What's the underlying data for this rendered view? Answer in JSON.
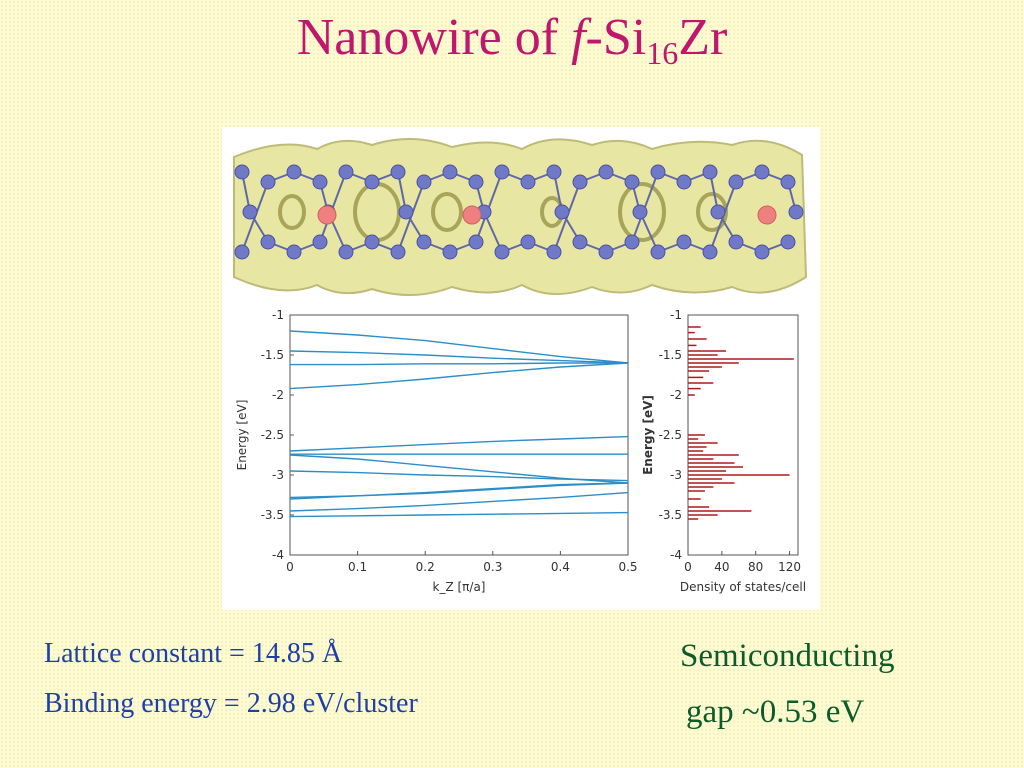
{
  "title": {
    "prefix": "Nanowire of ",
    "italic": "f",
    "mid": "-Si",
    "subscript": "16",
    "suffix": "Zr"
  },
  "info": {
    "lattice": "Lattice constant = 14.85 Å",
    "binding": "Binding energy = 2.98 eV/cluster",
    "semiconducting_line1": "Semiconducting",
    "semiconducting_line2": "gap ~0.53 eV"
  },
  "colors": {
    "title": "#c0166e",
    "info_text": "#1f3fa8",
    "semiconducting_text": "#0d5a2a",
    "band_lines": "#2a8fc8",
    "dos_lines": "#b01818",
    "structure_isosurface": "#e6e49a",
    "si_atoms": "#7078c8",
    "zr_atoms": "#ee8080"
  },
  "chart_data": [
    {
      "type": "line",
      "xlabel": "k_Z [π/a]",
      "ylabel": "Energy [eV]",
      "xlim": [
        0,
        0.5
      ],
      "ylim": [
        -4,
        -1
      ],
      "x_ticks": [
        "0",
        "0.1",
        "0.2",
        "0.3",
        "0.4",
        "0.5"
      ],
      "y_ticks": [
        "-1",
        "-1.5",
        "-2",
        "-2.5",
        "-3",
        "-3.5",
        "-4"
      ],
      "grid": false,
      "series": [
        {
          "x": [
            0,
            0.1,
            0.2,
            0.3,
            0.4,
            0.5
          ],
          "values": [
            -1.2,
            -1.25,
            -1.32,
            -1.42,
            -1.52,
            -1.6
          ]
        },
        {
          "x": [
            0,
            0.1,
            0.2,
            0.3,
            0.4,
            0.5
          ],
          "values": [
            -1.45,
            -1.47,
            -1.5,
            -1.54,
            -1.57,
            -1.6
          ]
        },
        {
          "x": [
            0,
            0.1,
            0.2,
            0.3,
            0.4,
            0.5
          ],
          "values": [
            -1.62,
            -1.62,
            -1.61,
            -1.61,
            -1.6,
            -1.6
          ]
        },
        {
          "x": [
            0,
            0.1,
            0.2,
            0.3,
            0.4,
            0.5
          ],
          "values": [
            -1.92,
            -1.87,
            -1.8,
            -1.72,
            -1.65,
            -1.6
          ]
        },
        {
          "x": [
            0,
            0.1,
            0.2,
            0.3,
            0.4,
            0.5
          ],
          "values": [
            -2.7,
            -2.66,
            -2.62,
            -2.58,
            -2.55,
            -2.52
          ]
        },
        {
          "x": [
            0,
            0.1,
            0.2,
            0.3,
            0.4,
            0.5
          ],
          "values": [
            -2.74,
            -2.74,
            -2.74,
            -2.74,
            -2.74,
            -2.74
          ]
        },
        {
          "x": [
            0,
            0.1,
            0.2,
            0.3,
            0.4,
            0.5
          ],
          "values": [
            -2.75,
            -2.8,
            -2.88,
            -2.96,
            -3.04,
            -3.1
          ]
        },
        {
          "x": [
            0,
            0.1,
            0.2,
            0.3,
            0.4,
            0.5
          ],
          "values": [
            -2.95,
            -2.97,
            -3.0,
            -3.02,
            -3.05,
            -3.07
          ]
        },
        {
          "x": [
            0,
            0.1,
            0.2,
            0.3,
            0.4,
            0.5
          ],
          "values": [
            -3.3,
            -3.26,
            -3.22,
            -3.17,
            -3.12,
            -3.1
          ]
        },
        {
          "x": [
            0,
            0.1,
            0.2,
            0.3,
            0.4,
            0.5
          ],
          "values": [
            -3.28,
            -3.26,
            -3.23,
            -3.18,
            -3.13,
            -3.1
          ]
        },
        {
          "x": [
            0,
            0.1,
            0.2,
            0.3,
            0.4,
            0.5
          ],
          "values": [
            -3.45,
            -3.42,
            -3.38,
            -3.33,
            -3.28,
            -3.22
          ]
        },
        {
          "x": [
            0,
            0.1,
            0.2,
            0.3,
            0.4,
            0.5
          ],
          "values": [
            -3.52,
            -3.51,
            -3.5,
            -3.49,
            -3.48,
            -3.47
          ]
        }
      ]
    },
    {
      "type": "line",
      "xlabel": "Density of states/cell",
      "ylabel": "Energy [eV]",
      "xlim": [
        0,
        130
      ],
      "ylim": [
        -4,
        -1
      ],
      "x_ticks": [
        "0",
        "40",
        "80",
        "120"
      ],
      "y_ticks": [
        "-1",
        "-1.5",
        "-2",
        "-2.5",
        "-3",
        "-3.5",
        "-4"
      ],
      "grid": false,
      "series": [
        {
          "energy": [
            -1.15,
            -1.22,
            -1.3,
            -1.38,
            -1.45,
            -1.5,
            -1.55,
            -1.6,
            -1.65,
            -1.7,
            -1.78,
            -1.85,
            -1.92,
            -2.0,
            -2.5,
            -2.55,
            -2.6,
            -2.65,
            -2.7,
            -2.75,
            -2.8,
            -2.85,
            -2.9,
            -2.95,
            -3.0,
            -3.05,
            -3.1,
            -3.15,
            -3.2,
            -3.3,
            -3.4,
            -3.45,
            -3.5,
            -3.55
          ],
          "values": [
            15,
            8,
            22,
            10,
            45,
            35,
            125,
            60,
            40,
            25,
            18,
            30,
            15,
            8,
            20,
            12,
            35,
            22,
            18,
            60,
            30,
            55,
            65,
            45,
            120,
            40,
            55,
            30,
            20,
            15,
            25,
            75,
            35,
            12
          ]
        }
      ]
    }
  ]
}
